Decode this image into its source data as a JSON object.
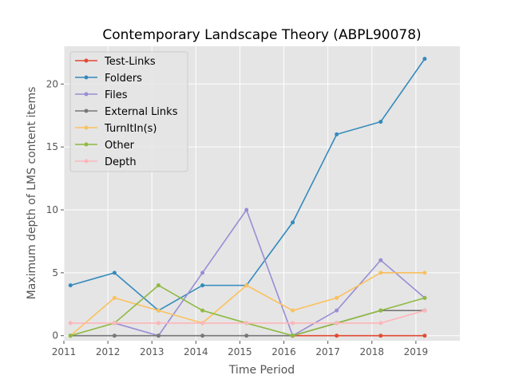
{
  "chart_data": {
    "type": "line",
    "title": "Contemporary Landscape Theory (ABPL90078)",
    "xlabel": "Time Period",
    "ylabel": "Maximum depth of LMS content items",
    "xlim": [
      2011.0,
      2020.0
    ],
    "ylim": [
      -0.4,
      23.0
    ],
    "x_ticks": [
      2011,
      2012,
      2013,
      2014,
      2015,
      2016,
      2017,
      2018,
      2019
    ],
    "y_ticks": [
      0,
      5,
      10,
      15,
      20
    ],
    "grid": true,
    "legend": "top-left",
    "series": [
      {
        "name": "Test-Links",
        "color": "#e24a33",
        "points": [
          [
            2016.2,
            0
          ],
          [
            2017.2,
            0
          ],
          [
            2018.2,
            0
          ],
          [
            2019.2,
            0
          ]
        ]
      },
      {
        "name": "Folders",
        "color": "#348abd",
        "points": [
          [
            2011.15,
            4
          ],
          [
            2012.15,
            5
          ],
          [
            2013.15,
            2
          ],
          [
            2014.15,
            4
          ],
          [
            2015.15,
            4
          ],
          [
            2016.2,
            9
          ],
          [
            2017.2,
            16
          ],
          [
            2018.2,
            17
          ],
          [
            2019.2,
            22
          ]
        ]
      },
      {
        "name": "Files",
        "color": "#988ed5",
        "points": [
          [
            2012.15,
            1
          ],
          [
            2013.15,
            0
          ],
          [
            2014.15,
            5
          ],
          [
            2015.15,
            10
          ],
          [
            2016.2,
            0
          ],
          [
            2017.2,
            2
          ],
          [
            2018.2,
            6
          ],
          [
            2019.2,
            3
          ]
        ]
      },
      {
        "name": "External Links",
        "color": "#777777",
        "points": [
          [
            2011.15,
            0
          ],
          [
            2012.15,
            0
          ],
          [
            2013.15,
            0
          ],
          [
            2014.15,
            0
          ],
          [
            2015.15,
            0
          ],
          [
            2016.2,
            0
          ],
          [
            2017.2,
            1
          ],
          [
            2018.2,
            2
          ],
          [
            2019.2,
            2
          ]
        ]
      },
      {
        "name": "TurnItIn(s)",
        "color": "#fbc15e",
        "points": [
          [
            2011.15,
            0
          ],
          [
            2012.15,
            3
          ],
          [
            2013.15,
            2
          ],
          [
            2014.15,
            1
          ],
          [
            2015.15,
            4
          ],
          [
            2016.2,
            2
          ],
          [
            2017.2,
            3
          ],
          [
            2018.2,
            5
          ],
          [
            2019.2,
            5
          ]
        ]
      },
      {
        "name": "Other",
        "color": "#8eba42",
        "points": [
          [
            2011.15,
            0
          ],
          [
            2012.15,
            1
          ],
          [
            2013.15,
            4
          ],
          [
            2014.15,
            2
          ],
          [
            2015.15,
            1
          ],
          [
            2016.2,
            0
          ],
          [
            2017.2,
            1
          ],
          [
            2018.2,
            2
          ],
          [
            2019.2,
            3
          ]
        ]
      },
      {
        "name": "Depth",
        "color": "#ffb5b8",
        "points": [
          [
            2011.15,
            1
          ],
          [
            2012.15,
            1
          ],
          [
            2013.15,
            1
          ],
          [
            2014.15,
            1
          ],
          [
            2015.15,
            1
          ],
          [
            2016.2,
            1
          ],
          [
            2017.2,
            1
          ],
          [
            2018.2,
            1
          ],
          [
            2019.2,
            2
          ]
        ]
      }
    ]
  }
}
